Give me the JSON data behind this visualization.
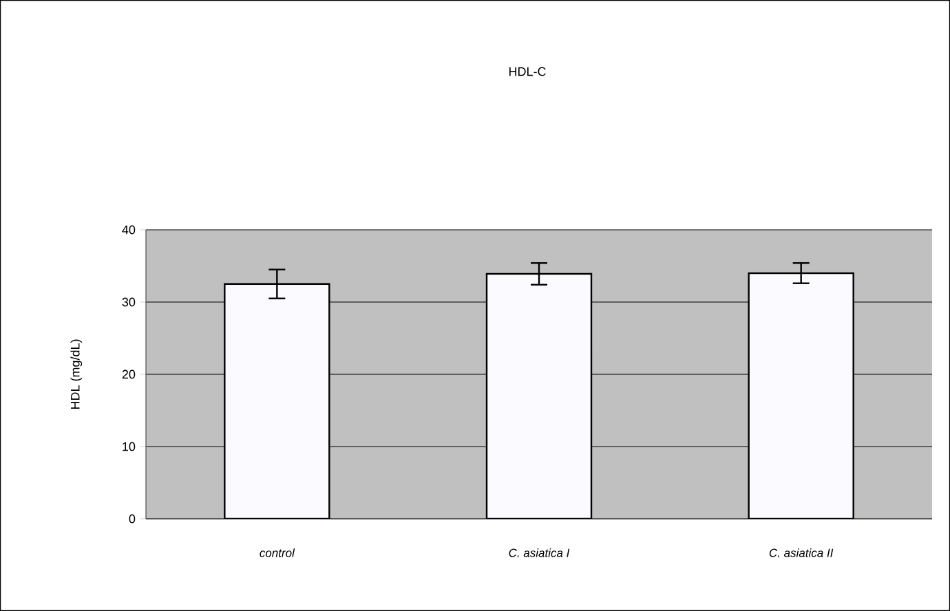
{
  "chart_data": {
    "type": "bar",
    "title": "HDL-C",
    "ylabel": "HDL (mg/dL)",
    "categories": [
      "control",
      "C. asiatica I",
      "C. asiatica II"
    ],
    "values": [
      32.5,
      33.9,
      34.0
    ],
    "errors": [
      2.0,
      1.5,
      1.4
    ],
    "color": "#fbfbff",
    "ylim": [
      0,
      40
    ],
    "yticks": [
      0,
      10,
      20,
      30,
      40
    ],
    "grid": "y"
  }
}
